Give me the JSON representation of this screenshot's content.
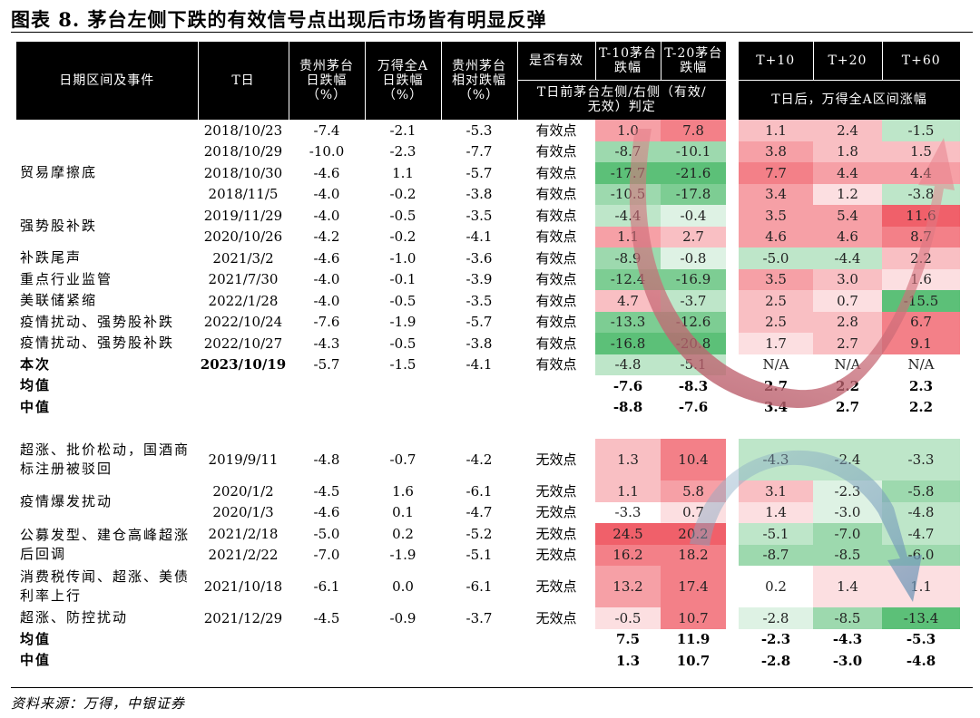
{
  "title": "图表 8. 茅台左侧下跌的有效信号点出现后市场皆有明显反弹",
  "headers": {
    "event": "日期区间及事件",
    "tday": "T日",
    "mt_drop": "贵州茅台日跌幅（%）",
    "a_drop": "万得全A日跌幅（%）",
    "rel_drop": "贵州茅台相对跌幅（%）",
    "valid": "是否有效",
    "t10": "T-10茅台跌幅",
    "t20": "T-20茅台跌幅",
    "judge": "T日前茅台左侧/右侧（有效/无效）判定",
    "p10": "T+10",
    "p20": "T+20",
    "p60": "T+60",
    "after": "T日后，万得全A区间涨幅"
  },
  "colors": {
    "header_bg": "#000000",
    "red_strong": "#f0606a",
    "green_strong": "#5cc078"
  },
  "section1": {
    "rows": [
      {
        "event": "",
        "date": "2018/10/23",
        "mt": "-7.4",
        "a": "-2.1",
        "rel": "-5.3",
        "valid": "有效点",
        "t10": "1.0",
        "t20": "7.8",
        "p10": "1.1",
        "p20": "2.4",
        "p60": "-1.5",
        "c": [
          3,
          4,
          2,
          2,
          -2
        ]
      },
      {
        "event": "贸易摩擦底",
        "date": "2018/10/29",
        "mt": "-10.0",
        "a": "-2.3",
        "rel": "-7.7",
        "valid": "有效点",
        "t10": "-8.7",
        "t20": "-10.1",
        "p10": "3.8",
        "p20": "1.8",
        "p60": "1.5",
        "c": [
          -3,
          -3,
          3,
          2,
          2
        ]
      },
      {
        "event": "",
        "date": "2018/10/30",
        "mt": "-4.6",
        "a": "1.1",
        "rel": "-5.7",
        "valid": "有效点",
        "t10": "-17.7",
        "t20": "-21.6",
        "p10": "7.7",
        "p20": "4.4",
        "p60": "4.4",
        "c": [
          -5,
          -5,
          4,
          3,
          3
        ]
      },
      {
        "event": "",
        "date": "2018/11/5",
        "mt": "-4.0",
        "a": "-0.2",
        "rel": "-3.8",
        "valid": "有效点",
        "t10": "-10.5",
        "t20": "-17.8",
        "p10": "3.4",
        "p20": "1.2",
        "p60": "-3.8",
        "c": [
          -3,
          -4,
          3,
          1,
          -2
        ]
      },
      {
        "event": "强势股补跌",
        "date": "2019/11/29",
        "mt": "-4.0",
        "a": "-0.5",
        "rel": "-3.5",
        "valid": "有效点",
        "t10": "-4.4",
        "t20": "-0.4",
        "p10": "3.5",
        "p20": "5.4",
        "p60": "11.6",
        "c": [
          -2,
          -1,
          3,
          3,
          5
        ]
      },
      {
        "event": "",
        "date": "2020/10/26",
        "mt": "-4.2",
        "a": "-0.2",
        "rel": "-4.1",
        "valid": "有效点",
        "t10": "1.1",
        "t20": "2.7",
        "p10": "4.6",
        "p20": "4.6",
        "p60": "8.7",
        "c": [
          3,
          2,
          3,
          3,
          4
        ]
      },
      {
        "event": "补跌尾声",
        "date": "2021/3/2",
        "mt": "-4.6",
        "a": "-1.0",
        "rel": "-3.6",
        "valid": "有效点",
        "t10": "-8.9",
        "t20": "-0.8",
        "p10": "-5.0",
        "p20": "-4.4",
        "p60": "2.2",
        "c": [
          -3,
          -1,
          -2,
          -2,
          2
        ]
      },
      {
        "event": "重点行业监管",
        "date": "2021/7/30",
        "mt": "-4.0",
        "a": "-0.1",
        "rel": "-3.9",
        "valid": "有效点",
        "t10": "-12.4",
        "t20": "-16.9",
        "p10": "3.5",
        "p20": "3.0",
        "p60": "1.6",
        "c": [
          -4,
          -4,
          3,
          2,
          1
        ]
      },
      {
        "event": "美联储紧缩",
        "date": "2022/1/28",
        "mt": "-4.0",
        "a": "-0.5",
        "rel": "-3.5",
        "valid": "有效点",
        "t10": "4.7",
        "t20": "-3.7",
        "p10": "2.5",
        "p20": "0.7",
        "p60": "-15.5",
        "c": [
          2,
          -2,
          2,
          1,
          -5
        ]
      },
      {
        "event": "疫情扰动、强势股补跌",
        "date": "2022/10/24",
        "mt": "-7.6",
        "a": "-1.9",
        "rel": "-5.7",
        "valid": "有效点",
        "t10": "-13.3",
        "t20": "-12.6",
        "p10": "2.5",
        "p20": "2.8",
        "p60": "6.7",
        "c": [
          -4,
          -4,
          2,
          2,
          4
        ]
      },
      {
        "event": "疫情扰动、强势股补跌",
        "date": "2022/10/27",
        "mt": "-4.3",
        "a": "-0.5",
        "rel": "-3.8",
        "valid": "有效点",
        "t10": "-16.8",
        "t20": "-20.8",
        "p10": "1.7",
        "p20": "2.7",
        "p60": "9.1",
        "c": [
          -5,
          -5,
          1,
          2,
          4
        ]
      },
      {
        "event": "本次",
        "date": "2023/10/19",
        "mt": "-5.7",
        "a": "-1.5",
        "rel": "-4.1",
        "valid": "有效点",
        "t10": "-4.8",
        "t20": "-5.1",
        "p10": "N/A",
        "p20": "N/A",
        "p60": "N/A",
        "c": [
          -2,
          -2,
          0,
          0,
          0
        ],
        "bold": true
      }
    ],
    "mean": {
      "label": "均值",
      "t10": "-7.6",
      "t20": "-8.3",
      "p10": "2.7",
      "p20": "2.2",
      "p60": "2.3"
    },
    "median": {
      "label": "中值",
      "t10": "-8.8",
      "t20": "-7.6",
      "p10": "3.4",
      "p20": "2.7",
      "p60": "2.2"
    }
  },
  "section2": {
    "rows": [
      {
        "event": "超涨、批价松动，国酒商标注册被驳回",
        "date": "2019/9/11",
        "mt": "-4.8",
        "a": "-0.7",
        "rel": "-4.2",
        "valid": "无效点",
        "t10": "1.3",
        "t20": "10.4",
        "p10": "-4.3",
        "p20": "-2.4",
        "p60": "-3.3",
        "c": [
          2,
          4,
          -2,
          -2,
          -2
        ],
        "tall": true
      },
      {
        "event": "疫情爆发扰动",
        "date": "2020/1/2",
        "mt": "-4.5",
        "a": "1.6",
        "rel": "-6.1",
        "valid": "无效点",
        "t10": "1.1",
        "t20": "5.8",
        "p10": "3.1",
        "p20": "-2.3",
        "p60": "-5.8",
        "c": [
          2,
          3,
          2,
          -1,
          -3
        ]
      },
      {
        "event": "",
        "date": "2020/1/3",
        "mt": "-4.6",
        "a": "0.1",
        "rel": "-4.7",
        "valid": "无效点",
        "t10": "-3.3",
        "t20": "0.7",
        "p10": "1.4",
        "p20": "-3.0",
        "p60": "-4.8",
        "c": [
          0,
          1,
          1,
          -1,
          -2
        ]
      },
      {
        "event": "公募发型、建仓高峰超涨后回调",
        "date": "2021/2/18",
        "mt": "-5.0",
        "a": "0.2",
        "rel": "-5.2",
        "valid": "无效点",
        "t10": "24.5",
        "t20": "20.2",
        "p10": "-5.1",
        "p20": "-7.0",
        "p60": "-4.7",
        "c": [
          5,
          5,
          -2,
          -3,
          -2
        ]
      },
      {
        "event": "",
        "date": "2021/2/22",
        "mt": "-7.0",
        "a": "-1.9",
        "rel": "-5.1",
        "valid": "无效点",
        "t10": "16.2",
        "t20": "18.2",
        "p10": "-8.7",
        "p20": "-8.5",
        "p60": "-6.0",
        "c": [
          4,
          4,
          -3,
          -3,
          -3
        ]
      },
      {
        "event": "消费税传闻、超涨、美债利率上行",
        "date": "2021/10/18",
        "mt": "-6.1",
        "a": "0.0",
        "rel": "-6.1",
        "valid": "无效点",
        "t10": "13.2",
        "t20": "17.4",
        "p10": "0.2",
        "p20": "1.4",
        "p60": "1.1",
        "c": [
          3,
          4,
          0,
          1,
          1
        ],
        "tall": true
      },
      {
        "event": "超涨、防控扰动",
        "date": "2021/12/29",
        "mt": "-4.5",
        "a": "-0.9",
        "rel": "-3.7",
        "valid": "无效点",
        "t10": "-0.5",
        "t20": "10.7",
        "p10": "-2.8",
        "p20": "-8.5",
        "p60": "-13.4",
        "c": [
          1,
          4,
          -1,
          -3,
          -5
        ]
      }
    ],
    "mean": {
      "label": "均值",
      "t10": "7.5",
      "t20": "11.9",
      "p10": "-2.3",
      "p20": "-4.3",
      "p60": "-5.3"
    },
    "median": {
      "label": "中值",
      "t10": "1.3",
      "t20": "10.7",
      "p10": "-2.8",
      "p20": "-3.0",
      "p60": "-4.8"
    }
  },
  "source": "资料来源：万得，中银证券"
}
